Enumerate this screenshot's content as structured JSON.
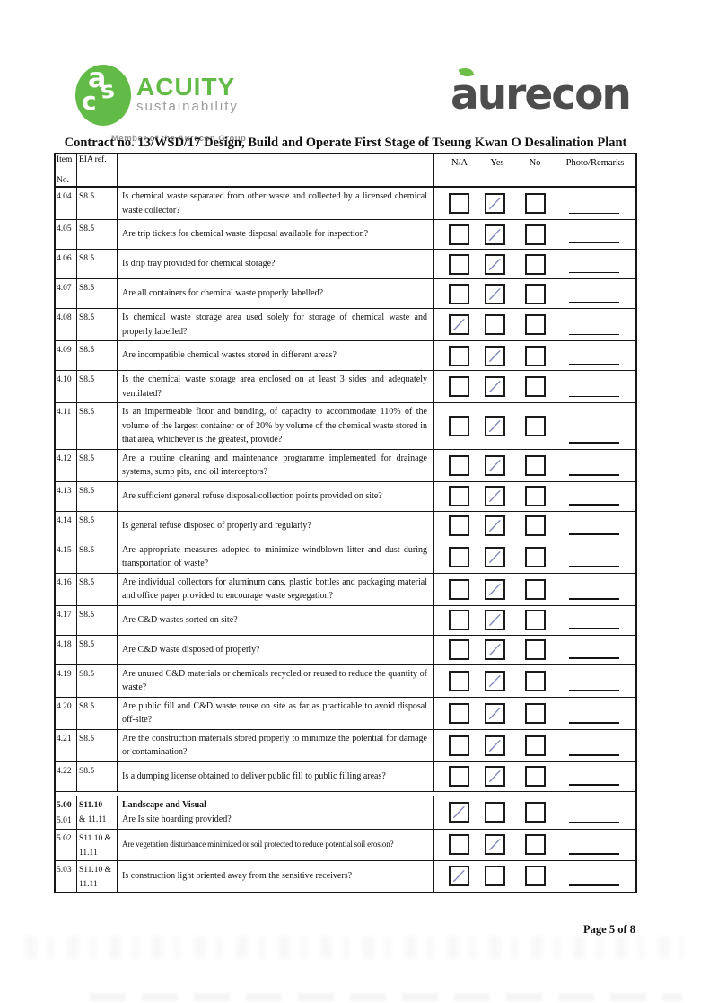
{
  "branding": {
    "acuity": {
      "monogram_letters": [
        "a",
        "s",
        "c"
      ],
      "name": "ACUITY",
      "subtitle": "sustainability",
      "tagline": "Member of the Aurecon Group",
      "green": "#63bb47",
      "gray": "#9b9b9b"
    },
    "aurecon": {
      "wordmark": "aurecon",
      "text_color": "#4d4d4d",
      "leaf_color": "#6cbf47"
    }
  },
  "title": "Contract no. 13/WSD/17 Design, Build and Operate First Stage of Tseung Kwan O Desalination Plant",
  "table": {
    "headers": {
      "item_line1": "Item",
      "item_line2": "No.",
      "eia_ref": "EIA ref.",
      "na": "N/A",
      "yes": "Yes",
      "no": "No",
      "photo": "Photo/Remarks"
    },
    "tick_color": "#7f84bb",
    "rows": [
      {
        "item": "4.04",
        "ref": "S8.5",
        "question": "Is chemical waste separated from other waste and collected by a licensed chemical waste collector?",
        "answer": "yes"
      },
      {
        "item": "4.05",
        "ref": "S8.5",
        "question": "Are trip tickets for chemical waste disposal available for inspection?",
        "answer": "yes"
      },
      {
        "item": "4.06",
        "ref": "S8.5",
        "question": "Is drip tray provided for chemical storage?",
        "answer": "yes"
      },
      {
        "item": "4.07",
        "ref": "S8.5",
        "question": "Are all containers for chemical waste properly labelled?",
        "answer": "yes"
      },
      {
        "item": "4.08",
        "ref": "S8.5",
        "question": "Is chemical waste storage area used solely for storage of chemical waste and properly labelled?",
        "answer": "na"
      },
      {
        "item": "4.09",
        "ref": "S8.5",
        "question": "Are incompatible chemical wastes stored in different areas?",
        "answer": "yes"
      },
      {
        "item": "4.10",
        "ref": "S8.5",
        "question": "Is the chemical waste storage area enclosed on at least 3 sides and adequately ventilated?",
        "answer": "yes"
      },
      {
        "item": "4.11",
        "ref": "S8.5",
        "question": "Is an impermeable floor and bunding, of capacity to accommodate 110% of the volume of the largest container or of 20% by volume of the chemical waste stored in that area, whichever is the greatest, provide?",
        "answer": "yes"
      },
      {
        "item": "4.12",
        "ref": "S8.5",
        "question": "Are a routine cleaning and maintenance programme implemented for drainage systems, sump pits, and oil interceptors?",
        "answer": "yes"
      },
      {
        "item": "4.13",
        "ref": "S8.5",
        "question": "Are sufficient general refuse disposal/collection points provided on site?",
        "answer": "yes"
      },
      {
        "item": "4.14",
        "ref": "S8.5",
        "question": "Is general refuse disposed of properly and regularly?",
        "answer": "yes"
      },
      {
        "item": "4.15",
        "ref": "S8.5",
        "question": "Are appropriate measures adopted to minimize windblown litter and dust during transportation of waste?",
        "answer": "yes"
      },
      {
        "item": "4.16",
        "ref": "S8.5",
        "question": "Are individual collectors for aluminum cans, plastic bottles and packaging material and office paper provided to encourage waste segregation?",
        "answer": "yes"
      },
      {
        "item": "4.17",
        "ref": "S8.5",
        "question": "Are C&D wastes sorted on site?",
        "answer": "yes"
      },
      {
        "item": "4.18",
        "ref": "S8.5",
        "question": "Are C&D waste disposed of properly?",
        "answer": "yes"
      },
      {
        "item": "4.19",
        "ref": "S8.5",
        "question": "Are unused C&D materials or chemicals recycled or reused to reduce the quantity of waste?",
        "answer": "yes"
      },
      {
        "item": "4.20",
        "ref": "S8.5",
        "question": "Are public fill and C&D waste reuse on site as far as practicable to avoid disposal off-site?",
        "answer": "yes"
      },
      {
        "item": "4.21",
        "ref": "S8.5",
        "question": "Are the construction materials stored properly to minimize the potential for damage or contamination?",
        "answer": "yes"
      },
      {
        "item": "4.22",
        "ref": "S8.5",
        "question": "Is a dumping license obtained to deliver public fill to public filling areas?",
        "answer": "yes"
      },
      {
        "spacer": true
      },
      {
        "item": "5.00",
        "item2": "5.01",
        "ref": "S11.10",
        "ref2": "& 11.11",
        "heading": "Landscape and Visual",
        "question": "Are Is site hoarding provided?",
        "answer": "na"
      },
      {
        "item": "5.02",
        "ref": "S11.10 &",
        "ref2": "11.11",
        "question": "Are vegetation disturbance minimized or soil protected to reduce potential soil erosion?",
        "answer": "yes",
        "compact": true
      },
      {
        "item": "5.03",
        "ref": "S11.10 &",
        "ref2": "11.11",
        "question": "Is construction light oriented away from the sensitive receivers?",
        "answer": "na"
      }
    ]
  },
  "footer": {
    "page_label": "Page 5 of 8"
  }
}
